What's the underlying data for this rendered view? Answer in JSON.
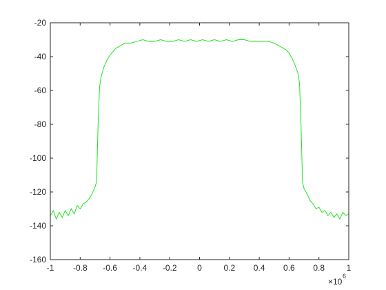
{
  "chart_data": {
    "type": "line",
    "x": [
      -1,
      -0.98,
      -0.96,
      -0.94,
      -0.92,
      -0.9,
      -0.88,
      -0.86,
      -0.84,
      -0.82,
      -0.8,
      -0.78,
      -0.76,
      -0.74,
      -0.72,
      -0.7,
      -0.69,
      -0.68,
      -0.67,
      -0.66,
      -0.64,
      -0.62,
      -0.6,
      -0.58,
      -0.56,
      -0.54,
      -0.52,
      -0.5,
      -0.46,
      -0.42,
      -0.38,
      -0.34,
      -0.3,
      -0.26,
      -0.22,
      -0.18,
      -0.14,
      -0.1,
      -0.06,
      -0.02,
      0.02,
      0.06,
      0.1,
      0.14,
      0.18,
      0.22,
      0.26,
      0.3,
      0.34,
      0.38,
      0.42,
      0.46,
      0.5,
      0.52,
      0.54,
      0.56,
      0.58,
      0.6,
      0.62,
      0.64,
      0.66,
      0.67,
      0.68,
      0.69,
      0.7,
      0.72,
      0.74,
      0.76,
      0.78,
      0.8,
      0.82,
      0.84,
      0.86,
      0.88,
      0.9,
      0.92,
      0.94,
      0.96,
      0.98,
      1
    ],
    "series": [
      {
        "color": "#1ee31e",
        "values": [
          -134,
          -131,
          -136,
          -132,
          -135,
          -131,
          -134,
          -130,
          -133,
          -128,
          -130,
          -127,
          -126,
          -124,
          -121,
          -117,
          -114,
          -80,
          -58,
          -52,
          -46,
          -42,
          -39,
          -37,
          -35,
          -34,
          -33,
          -32,
          -32,
          -31,
          -30,
          -31,
          -31,
          -30,
          -31,
          -31,
          -30,
          -31,
          -30,
          -31,
          -30,
          -31,
          -30,
          -31,
          -30,
          -31,
          -30,
          -30,
          -31,
          -31,
          -31,
          -31,
          -32,
          -33,
          -34,
          -35,
          -36,
          -38,
          -41,
          -45,
          -50,
          -56,
          -80,
          -114,
          -118,
          -121,
          -125,
          -127,
          -130,
          -129,
          -132,
          -131,
          -134,
          -132,
          -135,
          -133,
          -136,
          -132,
          -134,
          -133
        ]
      }
    ],
    "xlim": [
      -1,
      1
    ],
    "xticks": [
      -1,
      -0.8,
      -0.6,
      -0.4,
      -0.2,
      0,
      0.2,
      0.4,
      0.6,
      0.8,
      1
    ],
    "x_multiplier": {
      "base": "×10",
      "exponent": "6"
    },
    "ylim": [
      -160,
      -20
    ],
    "yticks": [
      -160,
      -140,
      -120,
      -100,
      -80,
      -60,
      -40,
      -20
    ],
    "grid": false
  }
}
